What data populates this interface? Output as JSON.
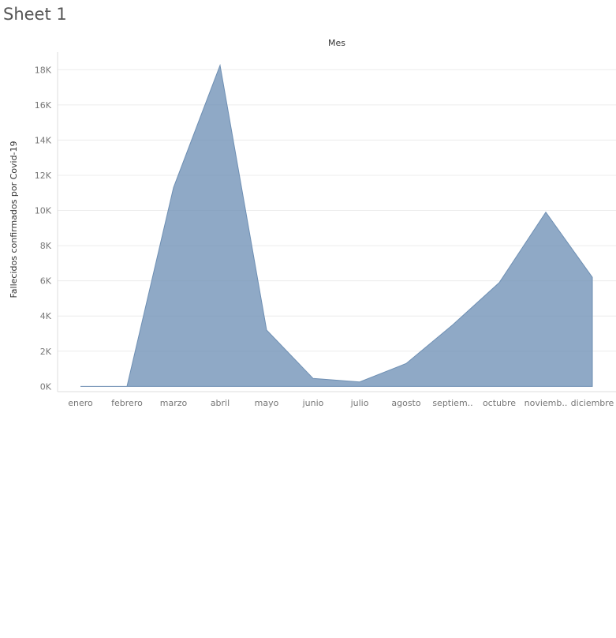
{
  "sheet": {
    "title": "Sheet 1"
  },
  "chart_data": {
    "type": "area",
    "title": "",
    "xlabel": "Mes",
    "ylabel": "Fallecidos confirmados por Covid-19",
    "categories": [
      "enero",
      "febrero",
      "marzo",
      "abril",
      "mayo",
      "junio",
      "julio",
      "agosto",
      "septiem..",
      "octubre",
      "noviemb..",
      "diciembre"
    ],
    "values": [
      0,
      0,
      11300,
      18250,
      3200,
      450,
      250,
      1300,
      3500,
      5900,
      9900,
      6200
    ],
    "yticks": [
      0,
      2000,
      4000,
      6000,
      8000,
      10000,
      12000,
      14000,
      16000,
      18000
    ],
    "ytick_labels": [
      "0K",
      "2K",
      "4K",
      "6K",
      "8K",
      "10K",
      "12K",
      "14K",
      "16K",
      "18K"
    ],
    "ylim": [
      -300,
      19000
    ],
    "grid": true,
    "colors": {
      "fill": "#7394b8",
      "stroke": "#6e8fb3"
    }
  }
}
